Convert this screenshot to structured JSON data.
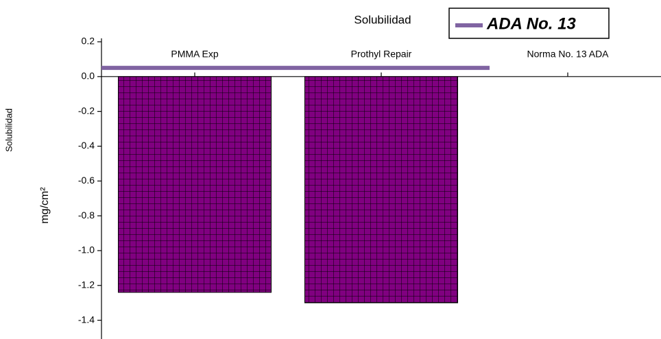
{
  "chart_data": {
    "type": "bar",
    "title": "Solubilidad",
    "ylabel": [
      "Solubilidad",
      "mg/cm²"
    ],
    "categories": [
      "PMMA Exp",
      "Prothyl Repair",
      "Norma No. 13 ADA"
    ],
    "values": [
      -1.24,
      -1.3,
      null
    ],
    "color": "#800080",
    "series": [
      {
        "name": "ADA No. 13",
        "color": "#8064a2",
        "values": [
          0.05,
          0.05,
          null
        ]
      }
    ],
    "ylim": [
      -1.5,
      0.2
    ],
    "yticks": [
      0.2,
      {
        "value": 0,
        "label": "0.0"
      },
      -0.2,
      -0.4,
      -0.6,
      -0.8,
      {
        "value": -1,
        "label": "-1.0"
      },
      -1.2,
      -1.4
    ],
    "legend": "top-right"
  }
}
